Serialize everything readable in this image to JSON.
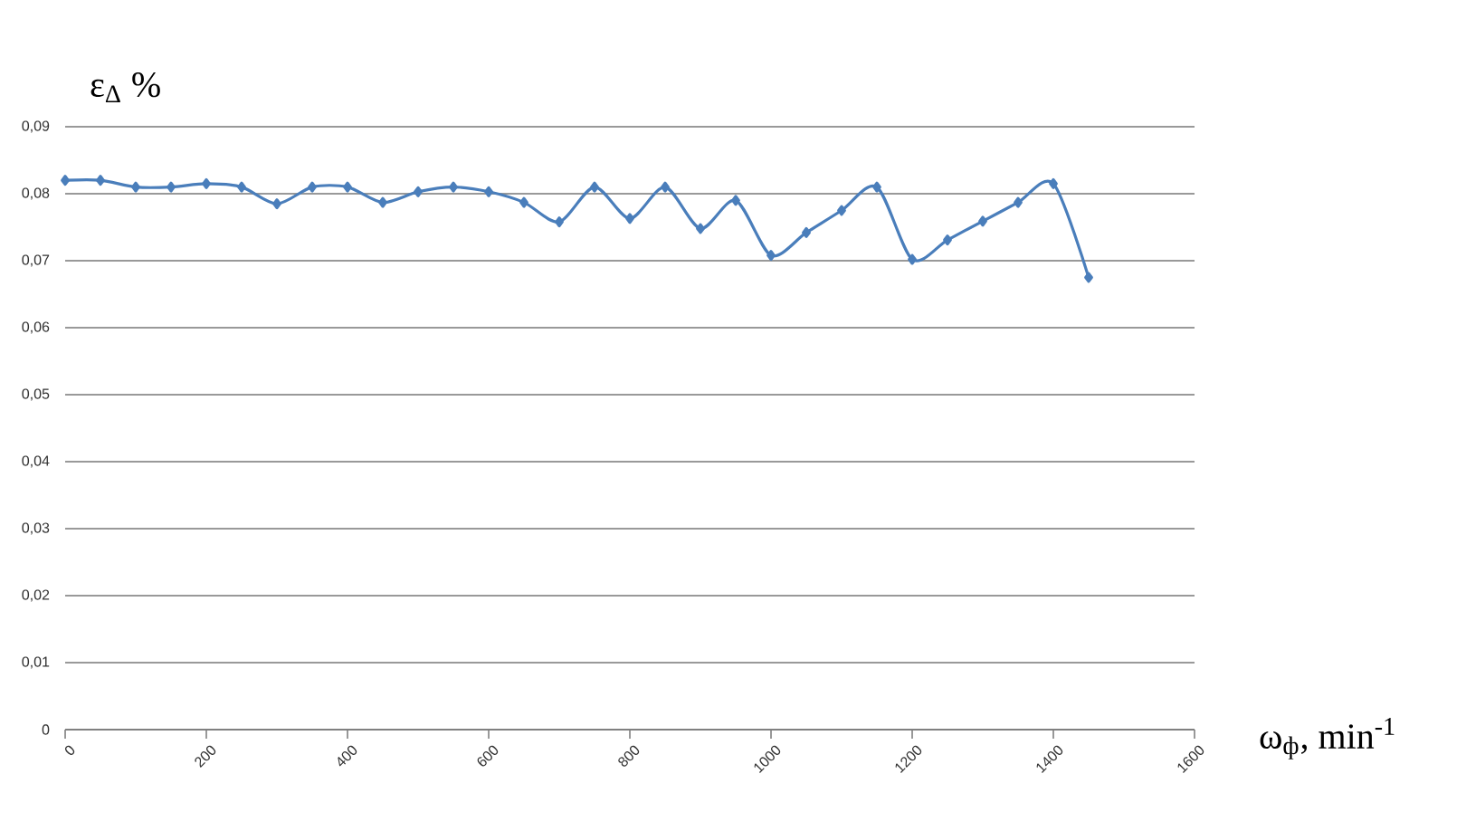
{
  "chart_data": {
    "type": "line",
    "ylabel": "ε$_{Δ}$ %",
    "xlabel": "ω$_{ф}$,  min$^{-1}$",
    "x": [
      0,
      50,
      100,
      150,
      200,
      250,
      300,
      350,
      400,
      450,
      500,
      550,
      600,
      650,
      700,
      750,
      800,
      850,
      900,
      950,
      1000,
      1050,
      1100,
      1150,
      1200,
      1250,
      1300,
      1350,
      1400,
      1450
    ],
    "series": [
      {
        "color": "#4a7ebb",
        "values": [
          0.082,
          0.082,
          0.081,
          0.081,
          0.0815,
          0.081,
          0.0785,
          0.081,
          0.081,
          0.0787,
          0.0803,
          0.081,
          0.0803,
          0.0787,
          0.0758,
          0.081,
          0.0763,
          0.081,
          0.0748,
          0.079,
          0.0708,
          0.0742,
          0.0775,
          0.081,
          0.0702,
          0.0731,
          0.0759,
          0.0787,
          0.0815,
          0.0675
        ]
      }
    ],
    "xlim": [
      0,
      1600
    ],
    "ylim": [
      0,
      0.09
    ],
    "xticks": [
      0,
      200,
      400,
      600,
      800,
      1000,
      1200,
      1400,
      1600
    ],
    "yticks": [
      0,
      {
        "value": 0.01,
        "label": "0,01"
      },
      {
        "value": 0.02,
        "label": "0,02"
      },
      {
        "value": 0.03,
        "label": "0,03"
      },
      {
        "value": 0.04,
        "label": "0,04"
      },
      {
        "value": 0.05,
        "label": "0,05"
      },
      {
        "value": 0.06,
        "label": "0,06"
      },
      {
        "value": 0.07,
        "label": "0,07"
      },
      {
        "value": 0.08,
        "label": "0,08"
      },
      {
        "value": 0.09,
        "label": "0,09"
      }
    ],
    "grid": "y",
    "marker": "diamond",
    "line_style": "solid"
  }
}
